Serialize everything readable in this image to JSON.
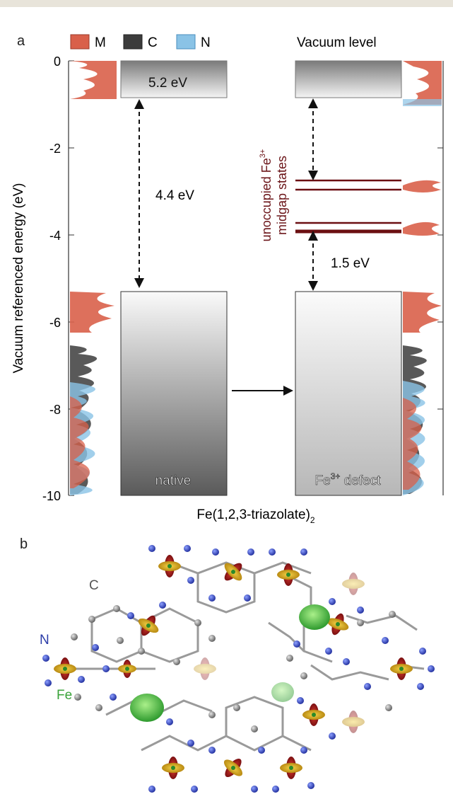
{
  "panel_a": {
    "letter": "a",
    "legend": [
      {
        "label": "M",
        "color": "#d9604a"
      },
      {
        "label": "C",
        "color": "#3c3c3c"
      },
      {
        "label": "N",
        "color": "#8ac3e6"
      }
    ],
    "vacuum_label": "Vacuum level",
    "y_axis_label": "Vacuum referenced energy (eV)",
    "y_ticks": [
      "0",
      "-2",
      "-4",
      "-6",
      "-8",
      "-10"
    ],
    "cb_native_label": "5.2 eV",
    "gap_native_label": "4.4 eV",
    "gap_defect_label": "1.5 eV",
    "native_label": "native",
    "defect_label_base": "Fe",
    "defect_label_sup": "3+",
    "defect_label_rest": " defect",
    "midgap_line1_base": "unoccupied Fe",
    "midgap_line1_sup": "3+",
    "midgap_line2": "midgap states",
    "x_label_base": "Fe(1,2,3-triazolate)",
    "x_label_sub": "2"
  },
  "panel_b": {
    "letter": "b",
    "atom_labels": [
      {
        "label": "C",
        "color": "#555555"
      },
      {
        "label": "N",
        "color": "#2c3da8"
      },
      {
        "label": "Fe",
        "color": "#3aa33a"
      }
    ]
  },
  "chart_data": {
    "type": "energy-level diagram",
    "ylabel": "Vacuum referenced energy (eV)",
    "ylim": [
      -10,
      0
    ],
    "y_ticks": [
      0,
      -2,
      -4,
      -6,
      -8,
      -10
    ],
    "xlabel": "Fe(1,2,3-triazolate)2",
    "systems": [
      {
        "name": "native",
        "vbm_eV": -5.3,
        "cbm_eV": -0.85,
        "gap_eV": 4.4
      },
      {
        "name": "Fe3+ defect",
        "vbm_eV": -5.3,
        "cbm_eV": -0.85,
        "midgap_states_eV": [
          -2.8,
          -3.0,
          -3.85,
          -3.95
        ],
        "gap_to_midgap_eV": 1.5
      }
    ],
    "dos_series": [
      "M",
      "C",
      "N"
    ]
  }
}
